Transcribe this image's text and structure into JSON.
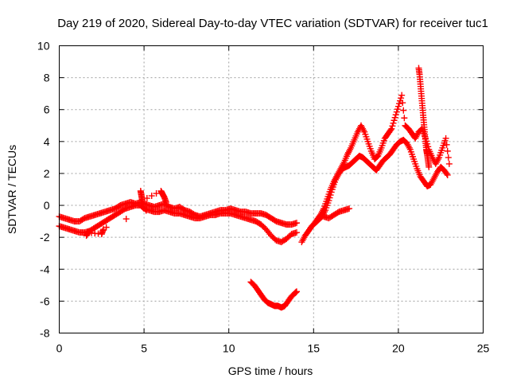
{
  "chart_data": {
    "type": "scatter",
    "title": "Day 219 of 2020, Sidereal Day-to-day VTEC variation (SDTVAR) for receiver tuc1",
    "xlabel": "GPS time / hours",
    "ylabel": "SDTVAR / TECUs",
    "xlim": [
      0,
      25
    ],
    "ylim": [
      -8,
      10
    ],
    "xticks": [
      0,
      5,
      10,
      15,
      20,
      25
    ],
    "yticks": [
      -8,
      -6,
      -4,
      -2,
      0,
      2,
      4,
      6,
      8,
      10
    ],
    "xtick_labels": [
      "0",
      "5",
      "10",
      "15",
      "20",
      "25"
    ],
    "ytick_labels": [
      "-8",
      "-6",
      "-4",
      "-2",
      "0",
      "2",
      "4",
      "6",
      "8",
      "10"
    ],
    "grid": true,
    "marker": "plus",
    "color": "#ff0000",
    "series": [
      {
        "name": "main-upper",
        "x": [
          0.0,
          0.3,
          0.6,
          0.9,
          1.2,
          1.5,
          1.8,
          2.1,
          2.4,
          2.7,
          3.0,
          3.3,
          3.6,
          3.9,
          4.2,
          4.5,
          4.8,
          5.0,
          5.3,
          5.6,
          5.9,
          6.2,
          6.5,
          6.8,
          7.1,
          7.4,
          7.7,
          8.0,
          8.3,
          8.6,
          8.9,
          9.2,
          9.5,
          9.8,
          10.1,
          10.4,
          10.7,
          11.0,
          11.3,
          11.6,
          11.9,
          12.2,
          12.5,
          12.8,
          13.1,
          13.4,
          13.7,
          14.0
        ],
        "y": [
          -0.7,
          -0.8,
          -0.9,
          -1.0,
          -1.0,
          -0.8,
          -0.7,
          -0.6,
          -0.5,
          -0.4,
          -0.3,
          -0.2,
          0.0,
          0.1,
          0.2,
          0.1,
          0.2,
          0.1,
          0.0,
          -0.1,
          0.0,
          0.1,
          -0.1,
          -0.2,
          -0.1,
          -0.3,
          -0.4,
          -0.6,
          -0.7,
          -0.6,
          -0.5,
          -0.4,
          -0.3,
          -0.3,
          -0.2,
          -0.3,
          -0.4,
          -0.4,
          -0.5,
          -0.5,
          -0.5,
          -0.6,
          -0.8,
          -1.0,
          -1.1,
          -1.2,
          -1.2,
          -1.1
        ]
      },
      {
        "name": "main-lower",
        "x": [
          0.0,
          0.3,
          0.6,
          0.9,
          1.2,
          1.5,
          1.8,
          2.1,
          2.4,
          2.7,
          3.0,
          3.3,
          3.6,
          3.9,
          4.2,
          4.5,
          4.8,
          5.0,
          5.3,
          5.6,
          5.9,
          6.2,
          6.5,
          6.8,
          7.1,
          7.4,
          7.7,
          8.0,
          8.3,
          8.6,
          8.9,
          9.2,
          9.5,
          9.8,
          10.1,
          10.4,
          10.7,
          11.0,
          11.3,
          11.6,
          11.9,
          12.2,
          12.5,
          12.8,
          13.1,
          13.4,
          13.7,
          14.0
        ],
        "y": [
          -1.3,
          -1.4,
          -1.5,
          -1.6,
          -1.7,
          -1.7,
          -1.6,
          -1.4,
          -1.2,
          -1.0,
          -0.8,
          -0.6,
          -0.4,
          -0.2,
          -0.1,
          0.0,
          0.0,
          -0.2,
          -0.3,
          -0.4,
          -0.4,
          -0.3,
          -0.4,
          -0.5,
          -0.5,
          -0.6,
          -0.7,
          -0.8,
          -0.8,
          -0.7,
          -0.6,
          -0.6,
          -0.5,
          -0.5,
          -0.5,
          -0.6,
          -0.7,
          -0.8,
          -0.9,
          -1.0,
          -1.2,
          -1.5,
          -1.9,
          -2.2,
          -2.3,
          -2.1,
          -1.8,
          -1.7
        ]
      },
      {
        "name": "spikes",
        "x": [
          4.8,
          4.85,
          4.9,
          6.0,
          6.1,
          6.2,
          6.3,
          1.6,
          1.7,
          2.5,
          2.6
        ],
        "y": [
          0.9,
          0.6,
          0.3,
          0.9,
          0.7,
          0.5,
          0.2,
          -1.9,
          -1.7,
          -1.8,
          -1.5
        ]
      },
      {
        "name": "depletion",
        "x": [
          11.3,
          11.5,
          11.7,
          11.9,
          12.1,
          12.3,
          12.5,
          12.7,
          12.9,
          13.1,
          13.3,
          13.5,
          13.7,
          13.9,
          14.0
        ],
        "y": [
          -4.8,
          -5.0,
          -5.3,
          -5.6,
          -5.9,
          -6.1,
          -6.2,
          -6.3,
          -6.3,
          -6.4,
          -6.3,
          -6.0,
          -5.7,
          -5.5,
          -5.4
        ]
      },
      {
        "name": "recovery",
        "x": [
          14.3,
          14.5,
          14.7,
          14.9,
          15.1,
          15.3,
          15.5,
          15.7,
          15.9,
          16.1,
          16.3,
          16.5,
          16.7,
          16.9,
          17.1,
          17.3,
          17.5,
          17.7,
          17.9,
          18.1,
          18.3,
          18.5,
          18.7,
          18.9,
          19.1,
          19.3,
          19.5,
          19.7,
          19.9,
          20.1,
          20.3,
          20.5,
          20.7,
          20.9,
          21.1,
          21.3,
          21.5,
          21.7,
          21.9,
          22.1,
          22.3,
          22.5,
          22.7,
          22.9
        ],
        "y": [
          -2.3,
          -1.9,
          -1.6,
          -1.3,
          -1.1,
          -0.9,
          -0.7,
          -0.3,
          0.3,
          1.0,
          1.6,
          2.0,
          2.3,
          2.4,
          2.5,
          2.7,
          2.9,
          3.1,
          3.0,
          2.8,
          2.6,
          2.4,
          2.2,
          2.5,
          2.8,
          3.0,
          3.2,
          3.5,
          3.8,
          4.0,
          4.1,
          3.9,
          3.5,
          2.9,
          2.3,
          1.8,
          1.5,
          1.2,
          1.3,
          1.7,
          2.1,
          2.4,
          2.2,
          1.9
        ]
      },
      {
        "name": "recovery-upper",
        "x": [
          15.0,
          15.2,
          15.4,
          15.6,
          15.8,
          16.0,
          16.2,
          16.4,
          16.6,
          16.8,
          17.0,
          17.2,
          17.4,
          17.6,
          17.8,
          18.0,
          18.2,
          18.4,
          18.6,
          18.8,
          19.0,
          19.2,
          19.4,
          19.6,
          19.8,
          20.0,
          20.2,
          20.4,
          20.6,
          20.8,
          21.0,
          21.2,
          21.4,
          21.6,
          21.8,
          22.0,
          22.2,
          22.4,
          22.6,
          22.8,
          23.0
        ],
        "y": [
          -1.2,
          -0.9,
          -0.6,
          -0.2,
          0.4,
          1.0,
          1.5,
          1.9,
          2.3,
          2.7,
          3.2,
          3.6,
          4.1,
          4.6,
          5.0,
          4.6,
          4.0,
          3.4,
          2.9,
          3.1,
          3.6,
          4.2,
          4.5,
          4.8,
          5.5,
          6.2,
          6.9,
          5.0,
          4.8,
          4.5,
          4.2,
          4.6,
          4.8,
          4.2,
          3.5,
          3.0,
          2.6,
          3.0,
          3.6,
          4.2,
          2.6
        ]
      },
      {
        "name": "tail",
        "x": [
          15.6,
          15.9,
          16.2,
          16.5,
          16.8,
          17.1
        ],
        "y": [
          -0.7,
          -0.8,
          -0.6,
          -0.4,
          -0.3,
          -0.2
        ]
      },
      {
        "name": "peak",
        "x": [
          21.2,
          21.25,
          21.3,
          21.35,
          21.4,
          21.45,
          21.5,
          21.55,
          21.6,
          21.65,
          21.7,
          21.75,
          21.8
        ],
        "y": [
          8.6,
          8.2,
          7.6,
          7.0,
          6.4,
          5.8,
          5.2,
          4.6,
          4.0,
          3.5,
          3.2,
          2.8,
          2.4
        ]
      }
    ]
  }
}
